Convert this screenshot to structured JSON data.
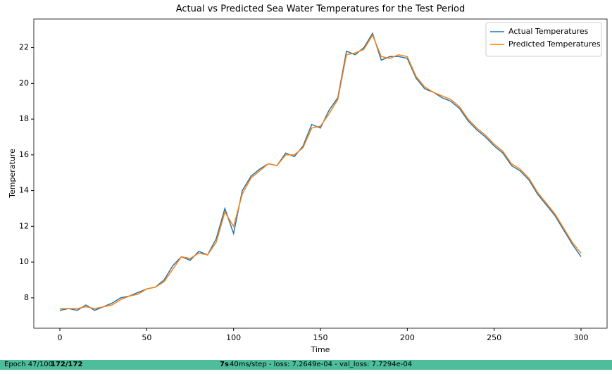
{
  "chart_data": {
    "type": "line",
    "title": "Actual vs Predicted Sea Water Temperatures for the Test Period",
    "x_label": "Time",
    "y_label": "Temperature",
    "x": [
      0,
      5,
      10,
      15,
      20,
      25,
      30,
      35,
      40,
      45,
      50,
      55,
      60,
      65,
      70,
      75,
      80,
      85,
      90,
      95,
      100,
      105,
      110,
      115,
      120,
      125,
      130,
      135,
      140,
      145,
      150,
      155,
      160,
      165,
      170,
      175,
      180,
      185,
      190,
      195,
      200,
      205,
      210,
      215,
      220,
      225,
      230,
      235,
      240,
      245,
      250,
      255,
      260,
      265,
      270,
      275,
      280,
      285,
      290,
      295,
      300
    ],
    "series": [
      {
        "name": "Actual Temperatures",
        "color": "#1f77b4",
        "values": [
          7.3,
          7.4,
          7.3,
          7.6,
          7.3,
          7.5,
          7.7,
          8.0,
          8.1,
          8.3,
          8.5,
          8.6,
          9.0,
          9.8,
          10.3,
          10.1,
          10.6,
          10.4,
          11.3,
          13.0,
          11.6,
          14.0,
          14.8,
          15.2,
          15.5,
          15.4,
          16.1,
          15.9,
          16.5,
          17.7,
          17.5,
          18.5,
          19.2,
          21.8,
          21.6,
          22.0,
          22.8,
          21.3,
          21.5,
          21.5,
          21.4,
          20.3,
          19.7,
          19.5,
          19.2,
          19.0,
          18.6,
          17.9,
          17.4,
          17.0,
          16.5,
          16.1,
          15.4,
          15.1,
          14.6,
          13.8,
          13.2,
          12.6,
          11.8,
          11.0,
          10.3
        ]
      },
      {
        "name": "Predicted Temperatures",
        "color": "#ff7f0e",
        "values": [
          7.4,
          7.4,
          7.4,
          7.5,
          7.4,
          7.5,
          7.6,
          7.9,
          8.1,
          8.2,
          8.5,
          8.6,
          8.9,
          9.6,
          10.3,
          10.2,
          10.5,
          10.4,
          11.1,
          12.8,
          12.0,
          13.8,
          14.7,
          15.1,
          15.5,
          15.4,
          16.0,
          16.0,
          16.4,
          17.5,
          17.6,
          18.3,
          19.1,
          21.6,
          21.7,
          21.9,
          22.7,
          21.5,
          21.4,
          21.6,
          21.5,
          20.4,
          19.8,
          19.5,
          19.3,
          19.1,
          18.7,
          18.0,
          17.5,
          17.1,
          16.6,
          16.2,
          15.5,
          15.2,
          14.7,
          13.9,
          13.3,
          12.7,
          11.9,
          11.1,
          10.5
        ]
      }
    ],
    "xlim": [
      -15,
      315
    ],
    "ylim": [
      6.3,
      23.6
    ],
    "xticks": [
      0,
      50,
      100,
      150,
      200,
      250,
      300
    ],
    "yticks": [
      8,
      10,
      12,
      14,
      16,
      18,
      20,
      22
    ],
    "legend": "upper right"
  },
  "progress": {
    "epoch": "Epoch 47/100",
    "steps": "172/172",
    "time": "7s",
    "detail": "40ms/step - loss: 7.2649e-04 - val_loss: 7.7294e-04"
  }
}
